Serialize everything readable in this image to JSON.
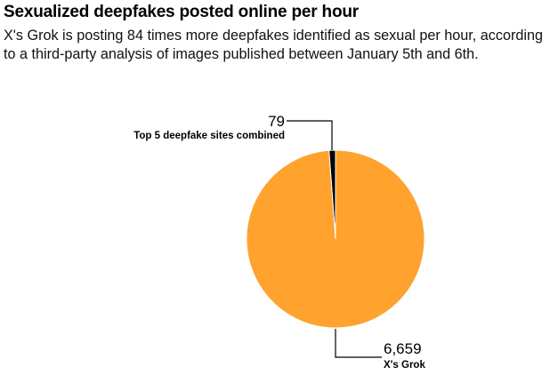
{
  "chart_data": {
    "type": "pie",
    "title": "Sexualized deepfakes posted online per hour",
    "subtitle": "X's Grok is posting 84 times more deepfakes identified as sexual per hour, according to a third-party analysis of images published between January 5th and 6th.",
    "slices": [
      {
        "label": "Top 5 deepfake sites combined",
        "value": 79,
        "value_label": "79",
        "color": "#000000"
      },
      {
        "label": "X's Grok",
        "value": 6659,
        "value_label": "6,659",
        "color": "#FFA22E"
      }
    ]
  }
}
